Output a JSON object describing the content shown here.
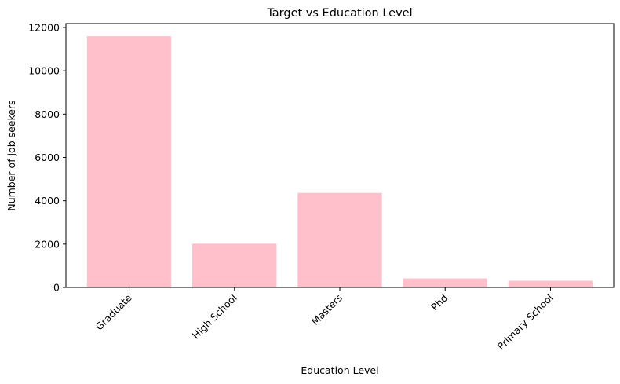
{
  "chart_data": {
    "type": "bar",
    "title": "Target vs Education Level",
    "xlabel": "Education Level",
    "ylabel": "Number of job seekers",
    "categories": [
      "Graduate",
      "High School",
      "Masters",
      "Phd",
      "Primary School"
    ],
    "values": [
      11598,
      2017,
      4361,
      414,
      308
    ],
    "ylim": [
      0,
      12000
    ],
    "yticks": [
      0,
      2000,
      4000,
      6000,
      8000,
      10000,
      12000
    ],
    "grid": false,
    "legend": "none",
    "bar_color": "#ffc0cb",
    "xtick_rotation": 45
  }
}
